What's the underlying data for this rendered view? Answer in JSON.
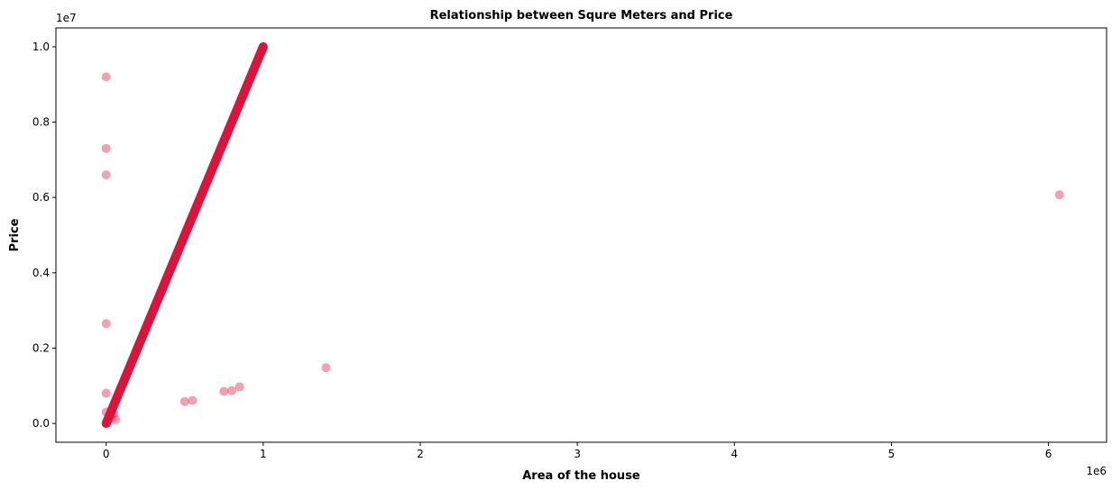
{
  "chart_data": {
    "type": "scatter",
    "title": "Relationship between Squre Meters and Price",
    "xlabel": "Area of the house",
    "ylabel": "Price",
    "x_offset_label": "1e6",
    "y_offset_label": "1e7",
    "xlim": [
      -320000,
      6370000
    ],
    "ylim": [
      -500000,
      10500000
    ],
    "x_ticks": [
      0,
      1000000,
      2000000,
      3000000,
      4000000,
      5000000,
      6000000
    ],
    "x_tick_labels": [
      "0",
      "1",
      "2",
      "3",
      "4",
      "5",
      "6"
    ],
    "y_ticks": [
      0,
      2000000,
      4000000,
      6000000,
      8000000,
      10000000
    ],
    "y_tick_labels": [
      "0.0",
      "0.2",
      "0.4",
      "0.6",
      "0.8",
      "1.0"
    ],
    "grid": false,
    "marker_color": "#DC143C",
    "marker_opacity": 0.4,
    "main_trend": {
      "description_x_start": 0,
      "description_y_start": 0,
      "x_end": 1000000,
      "y_end": 10000000
    },
    "points": [
      {
        "x": 0,
        "y": 0
      },
      {
        "x": 50000,
        "y": 500000
      },
      {
        "x": 100000,
        "y": 1000000
      },
      {
        "x": 150000,
        "y": 1500000
      },
      {
        "x": 200000,
        "y": 2000000
      },
      {
        "x": 250000,
        "y": 2500000
      },
      {
        "x": 300000,
        "y": 3000000
      },
      {
        "x": 350000,
        "y": 3500000
      },
      {
        "x": 400000,
        "y": 4000000
      },
      {
        "x": 450000,
        "y": 4500000
      },
      {
        "x": 500000,
        "y": 5000000
      },
      {
        "x": 550000,
        "y": 5500000
      },
      {
        "x": 600000,
        "y": 6000000
      },
      {
        "x": 650000,
        "y": 6500000
      },
      {
        "x": 700000,
        "y": 7000000
      },
      {
        "x": 750000,
        "y": 7500000
      },
      {
        "x": 800000,
        "y": 8000000
      },
      {
        "x": 850000,
        "y": 8500000
      },
      {
        "x": 900000,
        "y": 9000000
      },
      {
        "x": 950000,
        "y": 9500000
      },
      {
        "x": 1000000,
        "y": 10000000
      },
      {
        "x": 0,
        "y": 9200000
      },
      {
        "x": 0,
        "y": 7300000
      },
      {
        "x": 0,
        "y": 6600000
      },
      {
        "x": 0,
        "y": 2650000
      },
      {
        "x": 0,
        "y": 800000
      },
      {
        "x": 0,
        "y": 300000
      },
      {
        "x": 30000,
        "y": 150000
      },
      {
        "x": 60000,
        "y": 100000
      },
      {
        "x": 50000,
        "y": 250000
      },
      {
        "x": 500000,
        "y": 580000
      },
      {
        "x": 550000,
        "y": 610000
      },
      {
        "x": 750000,
        "y": 850000
      },
      {
        "x": 800000,
        "y": 870000
      },
      {
        "x": 850000,
        "y": 970000
      },
      {
        "x": 1400000,
        "y": 1480000
      },
      {
        "x": 6070000,
        "y": 6070000
      }
    ]
  }
}
